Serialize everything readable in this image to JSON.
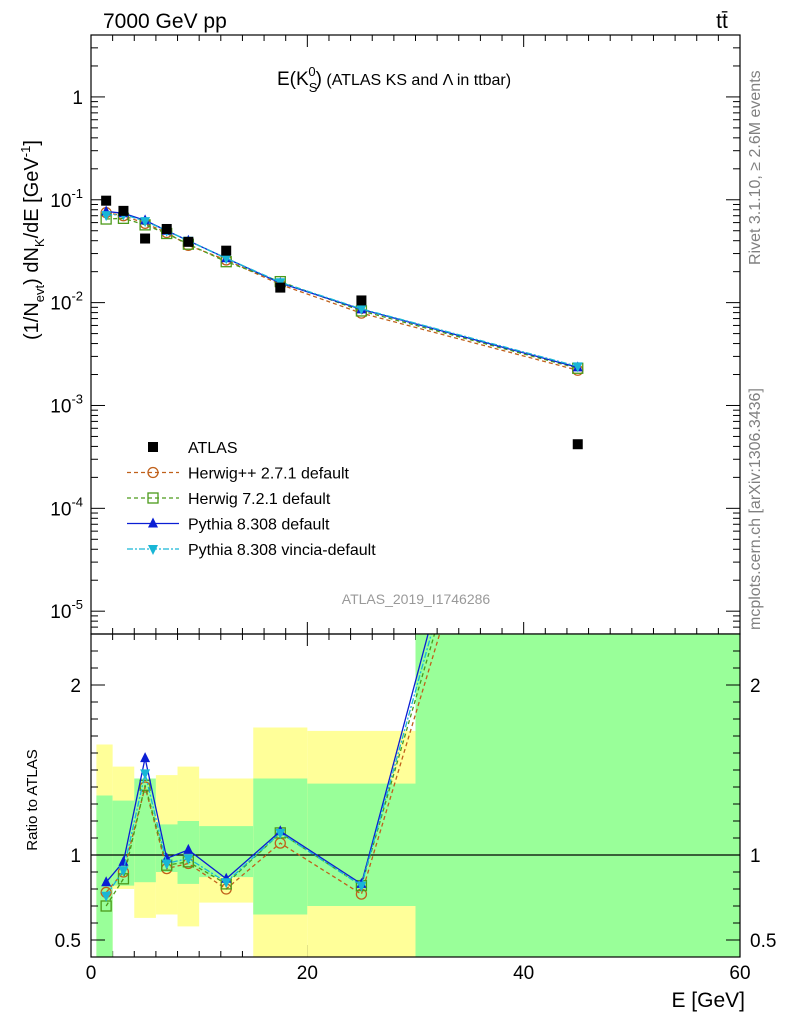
{
  "header": {
    "left": "7000 GeV pp",
    "right": "tt̄"
  },
  "side_labels": {
    "rivet": "Rivet 3.1.10, ≥ 2.6M events",
    "mcplots": "mcplots.cern.ch [arXiv:1306.3436]"
  },
  "chart_data": {
    "type": "scatter",
    "title_main": "E(K",
    "title_sup": "0",
    "title_sub": "S",
    "title_close": ")",
    "title_rest": " (ATLAS KS and Λ in ttbar)",
    "analysis_tag": "ATLAS_2019_I1746286",
    "x_label": "E [GeV]",
    "y_label": "(1/N_evt) dN_K/dE [GeV^-1]",
    "ratio_label": "Ratio to ATLAS",
    "xlim": [
      0,
      60
    ],
    "ylim": [
      6e-06,
      4
    ],
    "y_scale": "log",
    "ratio_ylim": [
      0.4,
      2.3
    ],
    "x_ticks": [
      "0",
      "20",
      "40",
      "60"
    ],
    "x_tick_values": [
      0,
      20,
      40,
      60
    ],
    "y_ticks": [
      "1",
      "10^-1",
      "10^-2",
      "10^-3",
      "10^-4",
      "10^-5"
    ],
    "y_tick_values": [
      1,
      0.1,
      0.01,
      0.001,
      0.0001,
      1e-05
    ],
    "ratio_ticks": [
      "2",
      "1",
      "0.5"
    ],
    "ratio_tick_values": [
      2,
      1,
      0.5
    ],
    "bin_edges": [
      0.5,
      2,
      4,
      6,
      8,
      10,
      15,
      20,
      30,
      60
    ],
    "x": [
      1.4,
      3,
      5,
      7,
      9,
      12.5,
      17.5,
      25,
      45
    ],
    "data": {
      "name": "ATLAS",
      "color": "#000000",
      "values": [
        0.098,
        0.078,
        0.042,
        0.052,
        0.039,
        0.032,
        0.014,
        0.0105,
        0.00042
      ]
    },
    "band_yellow": {
      "color": "#ffff99",
      "lo": [
        0.35,
        0.8,
        0.63,
        0.65,
        0.58,
        0.72,
        0.4,
        0.4,
        0.4
      ],
      "hi": [
        1.65,
        1.52,
        1.43,
        1.47,
        1.52,
        1.45,
        1.75,
        1.73,
        2.3
      ]
    },
    "band_green": {
      "color": "#99ff99",
      "lo": [
        0.4,
        0.82,
        0.84,
        0.9,
        0.83,
        0.87,
        0.65,
        0.7,
        0.4
      ],
      "hi": [
        1.35,
        1.32,
        1.45,
        1.18,
        1.2,
        1.17,
        1.45,
        1.42,
        2.3
      ]
    },
    "series": [
      {
        "name": "Herwig++ 2.7.1 default",
        "color": "#c0601a",
        "dash": "4,3",
        "marker": "circle",
        "values": [
          0.075,
          0.07,
          0.059,
          0.048,
          0.036,
          0.026,
          0.015,
          0.0079,
          0.0022
        ],
        "ratio": [
          0.78,
          0.9,
          1.4,
          0.92,
          0.95,
          0.8,
          1.07,
          0.77,
          5.0
        ]
      },
      {
        "name": "Herwig 7.2.1 default",
        "color": "#4c9a1a",
        "dash": "4,3",
        "marker": "square",
        "values": [
          0.065,
          0.066,
          0.057,
          0.047,
          0.037,
          0.025,
          0.016,
          0.0083,
          0.0023
        ],
        "ratio": [
          0.7,
          0.86,
          1.41,
          0.94,
          0.96,
          0.83,
          1.13,
          0.82,
          5.2
        ]
      },
      {
        "name": "Pythia 8.308 default",
        "color": "#0a1ed4",
        "dash": "",
        "marker": "triangle-up",
        "values": [
          0.077,
          0.074,
          0.063,
          0.05,
          0.04,
          0.027,
          0.0155,
          0.0086,
          0.00235
        ],
        "ratio": [
          0.84,
          0.96,
          1.57,
          0.98,
          1.03,
          0.86,
          1.14,
          0.83,
          5.6
        ]
      },
      {
        "name": "Pythia 8.308 vincia-default",
        "color": "#19b6d6",
        "dash": "6,2,2,2",
        "marker": "triangle-down",
        "values": [
          0.071,
          0.072,
          0.062,
          0.05,
          0.04,
          0.027,
          0.0158,
          0.0087,
          0.0024
        ],
        "ratio": [
          0.76,
          0.91,
          1.48,
          0.95,
          0.98,
          0.84,
          1.13,
          0.82,
          5.4
        ]
      }
    ]
  }
}
